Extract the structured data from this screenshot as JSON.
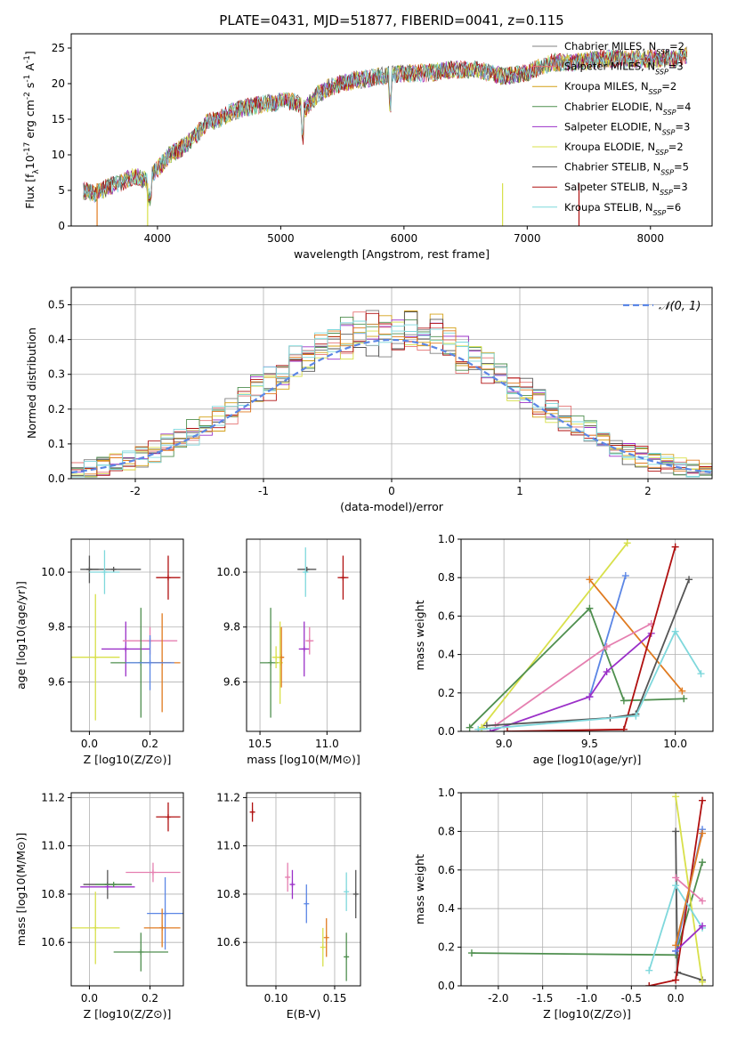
{
  "figure_title": "PLATE=0431, MJD=51877, FIBERID=0041, z=0.115",
  "palette": {
    "chabrier_miles": "#808080",
    "salpeter_miles": "#e57373",
    "kroupa_miles": "#d4a017",
    "chabrier_elodie": "#4f8f4f",
    "salpeter_elodie": "#9b30c8",
    "kroupa_elodie": "#d8e04a",
    "chabrier_stelib": "#555555",
    "salpeter_stelib": "#b01010",
    "kroupa_stelib": "#7fd8dc",
    "blue": "#5b86e5",
    "orange": "#e07b20",
    "pink": "#e57fb0",
    "olive": "#bdb76b",
    "darkgreen": "#3f6f4f"
  },
  "chart_data": [
    {
      "id": "spectrum",
      "type": "line",
      "xlabel": "wavelength [Angstrom, rest frame]",
      "ylabel": "Flux [f_λ 10^-17 erg cm^-2 s^-1 A^-1]",
      "xlim": [
        3300,
        8500
      ],
      "ylim": [
        0,
        27
      ],
      "xticks": [
        4000,
        5000,
        6000,
        7000,
        8000
      ],
      "yticks": [
        0,
        5,
        10,
        15,
        20,
        25
      ],
      "legend_position": "upper-right",
      "flux_profile": {
        "x": [
          3400,
          3500,
          3600,
          3700,
          3800,
          3900,
          4000,
          4100,
          4200,
          4300,
          4400,
          4500,
          4600,
          4700,
          4800,
          4900,
          5000,
          5100,
          5200,
          5300,
          5400,
          5500,
          5600,
          5800,
          6000,
          6200,
          6400,
          6600,
          6800,
          7000,
          7200,
          7400,
          7600,
          7800,
          8000,
          8200,
          8300
        ],
        "y": [
          5,
          4.5,
          5.5,
          6,
          7,
          6.5,
          8,
          10,
          11,
          12.5,
          14.5,
          15,
          16,
          16.5,
          17,
          17.2,
          17.5,
          17.5,
          16.5,
          18.5,
          19.5,
          20,
          20.5,
          21,
          21.5,
          21.5,
          22,
          22,
          21,
          21.5,
          23,
          23,
          23.5,
          23.5,
          23.5,
          23.5,
          24
        ]
      },
      "legend": [
        {
          "label": "Chabrier MILES, ",
          "nssp": "2",
          "color": "#808080"
        },
        {
          "label": "Salpeter MILES, ",
          "nssp": "3",
          "color": "#e57373"
        },
        {
          "label": "Kroupa MILES, ",
          "nssp": "2",
          "color": "#d4a017"
        },
        {
          "label": "Chabrier ELODIE, ",
          "nssp": "4",
          "color": "#4f8f4f"
        },
        {
          "label": "Salpeter ELODIE, ",
          "nssp": "3",
          "color": "#9b30c8"
        },
        {
          "label": "Kroupa ELODIE, ",
          "nssp": "2",
          "color": "#d8e04a"
        },
        {
          "label": "Chabrier STELIB, ",
          "nssp": "5",
          "color": "#555555"
        },
        {
          "label": "Salpeter STELIB, ",
          "nssp": "3",
          "color": "#b01010"
        },
        {
          "label": "Kroupa STELIB, ",
          "nssp": "6",
          "color": "#7fd8dc"
        }
      ]
    },
    {
      "id": "residuals",
      "type": "line",
      "xlabel": "(data-model)/error",
      "ylabel": "Normed distribution",
      "xlim": [
        -2.5,
        2.5
      ],
      "ylim": [
        0,
        0.55
      ],
      "xticks": [
        -2,
        -1,
        0,
        1,
        2
      ],
      "yticks": [
        0.0,
        0.1,
        0.2,
        0.3,
        0.4,
        0.5
      ],
      "grid": true,
      "legend_label": "𝒩(0, 1)",
      "legend_position": "upper-right"
    },
    {
      "id": "age_vs_Z",
      "type": "scatter",
      "xlabel": "Z [log10(Z/Z⊙)]",
      "ylabel": "age [log10(age/yr)]",
      "xlim": [
        -0.06,
        0.31
      ],
      "ylim": [
        9.42,
        10.12
      ],
      "xticks": [
        0.0,
        0.2
      ],
      "yticks": [
        9.6,
        9.8,
        10.0
      ],
      "grid": true,
      "points": [
        {
          "x": 0.0,
          "y": 10.01,
          "xerr": 0.03,
          "yerr": 0.05,
          "color": "#555555"
        },
        {
          "x": 0.08,
          "y": 10.01,
          "xerr": 0.09,
          "yerr": 0.0,
          "color": "#555555"
        },
        {
          "x": 0.05,
          "y": 10.0,
          "xerr": 0.05,
          "yerr": 0.08,
          "color": "#7fd8dc"
        },
        {
          "x": 0.26,
          "y": 9.98,
          "xerr": 0.04,
          "yerr": 0.08,
          "color": "#b01010"
        },
        {
          "x": 0.02,
          "y": 9.69,
          "xerr": 0.08,
          "yerr": 0.23,
          "color": "#d8e04a"
        },
        {
          "x": 0.12,
          "y": 9.72,
          "xerr": 0.08,
          "yerr": 0.1,
          "color": "#9b30c8"
        },
        {
          "x": 0.2,
          "y": 9.75,
          "xerr": 0.09,
          "yerr": 0.05,
          "color": "#e57fb0"
        },
        {
          "x": 0.17,
          "y": 9.67,
          "xerr": 0.1,
          "yerr": 0.2,
          "color": "#4f8f4f"
        },
        {
          "x": 0.24,
          "y": 9.67,
          "xerr": 0.06,
          "yerr": 0.18,
          "color": "#e07b20"
        },
        {
          "x": 0.2,
          "y": 9.67,
          "xerr": 0.08,
          "yerr": 0.1,
          "color": "#5b86e5"
        }
      ]
    },
    {
      "id": "age_vs_mass",
      "type": "scatter",
      "xlabel": "mass [log10(M/M⊙)]",
      "xlim": [
        10.4,
        11.25
      ],
      "ylim": [
        9.42,
        10.12
      ],
      "xticks": [
        10.5,
        11.0
      ],
      "yticks": [
        9.6,
        9.8,
        10.0
      ],
      "grid": true,
      "points": [
        {
          "x": 10.85,
          "y": 10.01,
          "xerr": 0.07,
          "yerr": 0.0,
          "color": "#555555"
        },
        {
          "x": 10.84,
          "y": 10.0,
          "xerr": 0.02,
          "yerr": 0.09,
          "color": "#7fd8dc"
        },
        {
          "x": 11.12,
          "y": 9.98,
          "xerr": 0.04,
          "yerr": 0.08,
          "color": "#b01010"
        },
        {
          "x": 10.58,
          "y": 9.67,
          "xerr": 0.08,
          "yerr": 0.2,
          "color": "#4f8f4f"
        },
        {
          "x": 10.65,
          "y": 9.67,
          "xerr": 0.02,
          "yerr": 0.15,
          "color": "#d8e04a"
        },
        {
          "x": 10.66,
          "y": 9.69,
          "xerr": 0.02,
          "yerr": 0.11,
          "color": "#e07b20"
        },
        {
          "x": 10.83,
          "y": 9.72,
          "xerr": 0.04,
          "yerr": 0.1,
          "color": "#9b30c8"
        },
        {
          "x": 10.87,
          "y": 9.75,
          "xerr": 0.03,
          "yerr": 0.05,
          "color": "#e57fb0"
        },
        {
          "x": 10.62,
          "y": 9.69,
          "xerr": 0.03,
          "yerr": 0.04,
          "color": "#d8e04a"
        }
      ]
    },
    {
      "id": "mass_weight_vs_age",
      "type": "line",
      "xlabel": "age [log10(age/yr)]",
      "ylabel": "mass weight",
      "xlim": [
        8.75,
        10.22
      ],
      "ylim": [
        0,
        1.0
      ],
      "xticks": [
        9.0,
        9.5,
        10.0
      ],
      "yticks": [
        0.0,
        0.2,
        0.4,
        0.6,
        0.8,
        1.0
      ],
      "grid": true,
      "series": [
        {
          "color": "#d8e04a",
          "x": [
            8.87,
            9.72
          ],
          "y": [
            0.02,
            0.98
          ]
        },
        {
          "color": "#5b86e5",
          "x": [
            9.5,
            9.71
          ],
          "y": [
            0.18,
            0.81
          ]
        },
        {
          "color": "#e07b20",
          "x": [
            9.5,
            10.04
          ],
          "y": [
            0.79,
            0.21
          ]
        },
        {
          "color": "#4f8f4f",
          "x": [
            8.8,
            9.5,
            9.7,
            10.05
          ],
          "y": [
            0.02,
            0.64,
            0.16,
            0.17
          ]
        },
        {
          "color": "#9b30c8",
          "x": [
            8.92,
            9.5,
            9.6,
            9.86
          ],
          "y": [
            0.0,
            0.18,
            0.31,
            0.51
          ]
        },
        {
          "color": "#e57fb0",
          "x": [
            8.95,
            9.6,
            9.86
          ],
          "y": [
            0.03,
            0.44,
            0.56
          ]
        },
        {
          "color": "#b01010",
          "x": [
            9.02,
            9.7,
            10.0
          ],
          "y": [
            0.0,
            0.01,
            0.96
          ]
        },
        {
          "color": "#555555",
          "x": [
            8.9,
            9.62,
            9.77,
            10.08
          ],
          "y": [
            0.03,
            0.07,
            0.09,
            0.79
          ]
        },
        {
          "color": "#7fd8dc",
          "x": [
            8.85,
            9.77,
            10.0,
            10.15
          ],
          "y": [
            0.01,
            0.08,
            0.52,
            0.3
          ]
        }
      ]
    },
    {
      "id": "mass_vs_Z",
      "type": "scatter",
      "xlabel": "Z [log10(Z/Z⊙)]",
      "ylabel": "mass [log10(M/M⊙)]",
      "xlim": [
        -0.06,
        0.31
      ],
      "ylim": [
        10.42,
        11.22
      ],
      "xticks": [
        0.0,
        0.2
      ],
      "yticks": [
        10.6,
        10.8,
        11.0,
        11.2
      ],
      "grid": true,
      "points": [
        {
          "x": 0.26,
          "y": 11.12,
          "xerr": 0.04,
          "yerr": 0.06,
          "color": "#b01010"
        },
        {
          "x": 0.21,
          "y": 10.89,
          "xerr": 0.09,
          "yerr": 0.04,
          "color": "#e57fb0"
        },
        {
          "x": 0.06,
          "y": 10.84,
          "xerr": 0.08,
          "yerr": 0.06,
          "color": "#555555"
        },
        {
          "x": 0.06,
          "y": 10.83,
          "xerr": 0.09,
          "yerr": 0.0,
          "color": "#9b30c8"
        },
        {
          "x": 0.08,
          "y": 10.84,
          "xerr": 0.06,
          "yerr": 0.0,
          "color": "#4f8f4f"
        },
        {
          "x": 0.25,
          "y": 10.72,
          "xerr": 0.06,
          "yerr": 0.15,
          "color": "#5b86e5"
        },
        {
          "x": 0.02,
          "y": 10.66,
          "xerr": 0.08,
          "yerr": 0.15,
          "color": "#d8e04a"
        },
        {
          "x": 0.24,
          "y": 10.66,
          "xerr": 0.06,
          "yerr": 0.08,
          "color": "#e07b20"
        },
        {
          "x": 0.17,
          "y": 10.56,
          "xerr": 0.09,
          "yerr": 0.08,
          "color": "#4f8f4f"
        }
      ]
    },
    {
      "id": "mass_vs_ebv",
      "type": "scatter",
      "xlabel": "E(B-V)",
      "xlim": [
        0.075,
        0.172
      ],
      "ylim": [
        10.42,
        11.22
      ],
      "xticks": [
        0.1,
        0.15
      ],
      "yticks": [
        10.6,
        10.8,
        11.0,
        11.2
      ],
      "grid": true,
      "points": [
        {
          "x": 0.08,
          "y": 11.14,
          "yerr": 0.04,
          "color": "#b01010"
        },
        {
          "x": 0.11,
          "y": 10.87,
          "yerr": 0.06,
          "color": "#e57fb0"
        },
        {
          "x": 0.114,
          "y": 10.84,
          "yerr": 0.06,
          "color": "#9b30c8"
        },
        {
          "x": 0.126,
          "y": 10.76,
          "yerr": 0.08,
          "color": "#5b86e5"
        },
        {
          "x": 0.14,
          "y": 10.58,
          "yerr": 0.08,
          "color": "#d8e04a"
        },
        {
          "x": 0.143,
          "y": 10.62,
          "yerr": 0.08,
          "color": "#e07b20"
        },
        {
          "x": 0.16,
          "y": 10.81,
          "yerr": 0.08,
          "color": "#7fd8dc"
        },
        {
          "x": 0.16,
          "y": 10.54,
          "yerr": 0.1,
          "color": "#4f8f4f"
        },
        {
          "x": 0.168,
          "y": 10.8,
          "yerr": 0.1,
          "color": "#555555"
        }
      ]
    },
    {
      "id": "mass_weight_vs_Z",
      "type": "line",
      "xlabel": "Z [log10(Z/Z⊙)]",
      "ylabel": "mass weight",
      "xlim": [
        -2.42,
        0.42
      ],
      "ylim": [
        0,
        1.0
      ],
      "xticks": [
        -2.0,
        -1.5,
        -1.0,
        -0.5,
        0.0
      ],
      "yticks": [
        0.0,
        0.2,
        0.4,
        0.6,
        0.8,
        1.0
      ],
      "grid": true,
      "series": [
        {
          "color": "#4f8f4f",
          "x": [
            -2.3,
            0.0,
            0.3
          ],
          "y": [
            0.17,
            0.16,
            0.64
          ]
        },
        {
          "color": "#555555",
          "x": [
            0.0,
            0.02,
            0.3
          ],
          "y": [
            0.8,
            0.07,
            0.03
          ]
        },
        {
          "color": "#d8e04a",
          "x": [
            0.0,
            0.3
          ],
          "y": [
            0.98,
            0.02
          ]
        },
        {
          "color": "#b01010",
          "x": [
            -0.3,
            0.0,
            0.3
          ],
          "y": [
            0.0,
            0.03,
            0.96
          ]
        },
        {
          "color": "#7fd8dc",
          "x": [
            -0.3,
            0.0,
            0.3
          ],
          "y": [
            0.08,
            0.52,
            0.3
          ]
        },
        {
          "color": "#e57fb0",
          "x": [
            0.0,
            0.3
          ],
          "y": [
            0.56,
            0.44
          ]
        },
        {
          "color": "#9b30c8",
          "x": [
            0.0,
            0.3
          ],
          "y": [
            0.18,
            0.31
          ]
        },
        {
          "color": "#5b86e5",
          "x": [
            0.0,
            0.3
          ],
          "y": [
            0.18,
            0.81
          ]
        },
        {
          "color": "#e07b20",
          "x": [
            0.0,
            0.3
          ],
          "y": [
            0.21,
            0.79
          ]
        }
      ]
    }
  ]
}
